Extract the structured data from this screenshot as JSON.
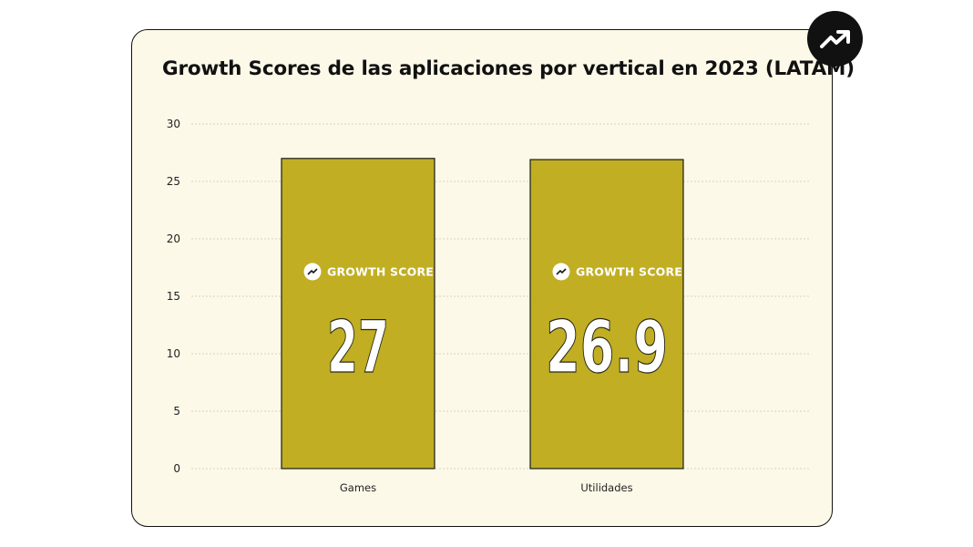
{
  "chart_data": {
    "type": "bar",
    "title": "Growth Scores de las aplicaciones por vertical en 2023 (LATAM)",
    "categories": [
      "Games",
      "Utilidades"
    ],
    "values": [
      27,
      26.9
    ],
    "value_labels": [
      "27",
      "26.9"
    ],
    "bar_badge_label": "GROWTH SCORE",
    "xlabel": "",
    "ylabel": "",
    "ylim": [
      0,
      30
    ],
    "yticks": [
      0,
      5,
      10,
      15,
      20,
      25,
      30
    ],
    "grid": true,
    "bar_color": "#c1ae22",
    "background_color": "#fdf9e8"
  },
  "badge_icon": "trending-up-icon"
}
